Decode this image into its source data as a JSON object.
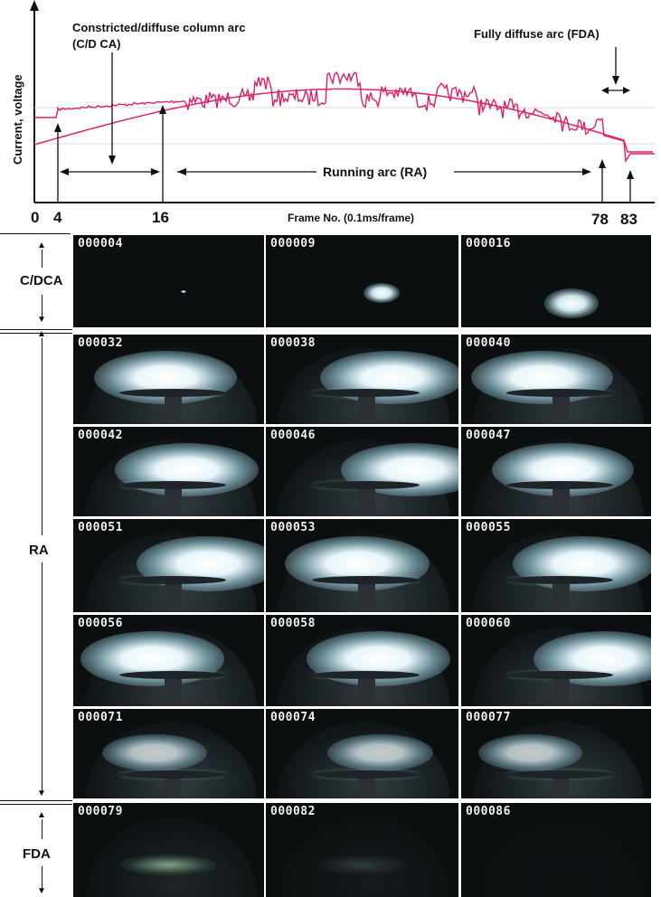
{
  "chart": {
    "ylabel": "Current, voltage",
    "xlabel": "Frame No. (0.1ms/frame)",
    "ticks": [
      "0",
      "4",
      "16",
      "78",
      "83"
    ],
    "ann_cdca": "Constricted/diffuse column arc",
    "ann_cdca2": "(C/D CA)",
    "ann_fda": "Fully diffuse arc (FDA)",
    "ann_ra": "Running arc (RA)",
    "color": "#e0206a"
  },
  "chart_data": {
    "type": "line",
    "xlabel": "Frame No. (0.1ms/frame)",
    "ylabel": "Current, voltage",
    "x_ticks": [
      0,
      4,
      16,
      78,
      83
    ],
    "series": [
      {
        "values": "sinusoidal current waveform"
      },
      {
        "values": "noisy arc voltage trace"
      }
    ]
  },
  "groups": [
    {
      "label": "C/DCA",
      "frames": [
        "000004",
        "000009",
        "000016"
      ]
    },
    {
      "label": "RA",
      "frames": [
        "000032",
        "000038",
        "000040",
        "000042",
        "000046",
        "000047",
        "000051",
        "000053",
        "000055",
        "000056",
        "000058",
        "000060",
        "000071",
        "000074",
        "000077"
      ]
    },
    {
      "label": "FDA",
      "frames": [
        "000079",
        "000082",
        "000086"
      ]
    }
  ]
}
